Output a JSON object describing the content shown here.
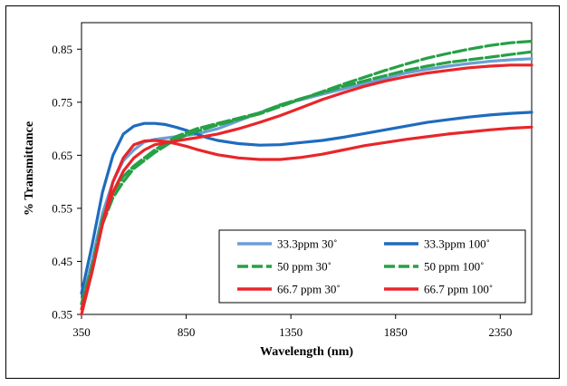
{
  "chart_data": {
    "type": "line",
    "title": "",
    "xlabel": "Wavelength (nm)",
    "ylabel": "% Transmittance",
    "xlim": [
      350,
      2500
    ],
    "ylim": [
      0.35,
      0.9
    ],
    "xticks": [
      350,
      850,
      1350,
      1850,
      2350
    ],
    "yticks": [
      0.35,
      0.45,
      0.55,
      0.65,
      0.75,
      0.85
    ],
    "xtick_labels": [
      "350",
      "850",
      "1350",
      "1850",
      "2350"
    ],
    "ytick_labels": [
      "0.35",
      "0.45",
      "0.55",
      "0.65",
      "0.75",
      "0.85"
    ],
    "grid": false,
    "legend_position": "lower-right",
    "series": [
      {
        "name": "33.3ppm 30˚",
        "color": "#6a9fd4",
        "style": "solid",
        "x": [
          350,
          400,
          450,
          500,
          550,
          600,
          650,
          700,
          800,
          900,
          1000,
          1100,
          1200,
          1300,
          1400,
          1500,
          1600,
          1700,
          1800,
          1900,
          2000,
          2100,
          2200,
          2300,
          2400,
          2500
        ],
        "y": [
          0.37,
          0.45,
          0.54,
          0.6,
          0.64,
          0.66,
          0.675,
          0.68,
          0.685,
          0.69,
          0.7,
          0.715,
          0.73,
          0.745,
          0.755,
          0.765,
          0.775,
          0.785,
          0.795,
          0.805,
          0.812,
          0.818,
          0.823,
          0.827,
          0.83,
          0.832
        ]
      },
      {
        "name": "33.3ppm 100˚",
        "color": "#1f6bbf",
        "style": "solid",
        "x": [
          350,
          400,
          450,
          500,
          550,
          600,
          650,
          700,
          750,
          800,
          850,
          900,
          950,
          1000,
          1100,
          1200,
          1300,
          1400,
          1500,
          1600,
          1700,
          1800,
          1900,
          2000,
          2100,
          2200,
          2300,
          2400,
          2500
        ],
        "y": [
          0.39,
          0.48,
          0.58,
          0.65,
          0.69,
          0.705,
          0.71,
          0.71,
          0.708,
          0.703,
          0.697,
          0.69,
          0.683,
          0.678,
          0.672,
          0.669,
          0.67,
          0.674,
          0.678,
          0.684,
          0.691,
          0.698,
          0.705,
          0.712,
          0.717,
          0.722,
          0.726,
          0.729,
          0.731
        ]
      },
      {
        "name": "50 ppm 30˚",
        "color": "#27a046",
        "style": "dash",
        "x": [
          350,
          400,
          450,
          500,
          550,
          600,
          650,
          700,
          800,
          900,
          1000,
          1100,
          1200,
          1300,
          1400,
          1500,
          1600,
          1700,
          1800,
          1900,
          2000,
          2100,
          2200,
          2300,
          2400,
          2500
        ],
        "y": [
          0.37,
          0.44,
          0.53,
          0.58,
          0.61,
          0.63,
          0.645,
          0.66,
          0.685,
          0.7,
          0.71,
          0.72,
          0.73,
          0.745,
          0.757,
          0.768,
          0.78,
          0.79,
          0.8,
          0.81,
          0.818,
          0.825,
          0.83,
          0.835,
          0.84,
          0.845
        ]
      },
      {
        "name": "50 ppm 100˚",
        "color": "#27a046",
        "style": "dash",
        "x": [
          350,
          400,
          450,
          500,
          550,
          600,
          650,
          700,
          800,
          900,
          1000,
          1100,
          1200,
          1300,
          1400,
          1500,
          1600,
          1700,
          1800,
          1900,
          2000,
          2100,
          2200,
          2300,
          2400,
          2500
        ],
        "y": [
          0.37,
          0.44,
          0.52,
          0.57,
          0.6,
          0.625,
          0.64,
          0.655,
          0.68,
          0.695,
          0.707,
          0.718,
          0.728,
          0.742,
          0.756,
          0.77,
          0.784,
          0.797,
          0.81,
          0.822,
          0.833,
          0.842,
          0.85,
          0.857,
          0.862,
          0.865
        ]
      },
      {
        "name": "66.7 ppm 30˚",
        "color": "#e8262a",
        "style": "solid",
        "x": [
          350,
          400,
          450,
          500,
          550,
          600,
          650,
          700,
          800,
          900,
          1000,
          1100,
          1200,
          1300,
          1400,
          1500,
          1600,
          1700,
          1800,
          1900,
          2000,
          2100,
          2200,
          2300,
          2400,
          2500
        ],
        "y": [
          0.36,
          0.43,
          0.52,
          0.58,
          0.62,
          0.645,
          0.66,
          0.67,
          0.677,
          0.683,
          0.69,
          0.7,
          0.712,
          0.725,
          0.74,
          0.755,
          0.768,
          0.78,
          0.79,
          0.798,
          0.805,
          0.81,
          0.815,
          0.818,
          0.82,
          0.82
        ]
      },
      {
        "name": "66.7 ppm 100˚",
        "color": "#e8262a",
        "style": "solid",
        "x": [
          350,
          400,
          450,
          500,
          550,
          600,
          650,
          700,
          750,
          800,
          850,
          900,
          1000,
          1100,
          1200,
          1300,
          1400,
          1500,
          1600,
          1700,
          1800,
          1900,
          2000,
          2100,
          2200,
          2300,
          2400,
          2500
        ],
        "y": [
          0.35,
          0.43,
          0.52,
          0.6,
          0.645,
          0.67,
          0.677,
          0.678,
          0.676,
          0.672,
          0.667,
          0.661,
          0.651,
          0.645,
          0.642,
          0.642,
          0.646,
          0.652,
          0.66,
          0.668,
          0.674,
          0.68,
          0.685,
          0.69,
          0.694,
          0.698,
          0.701,
          0.703
        ]
      }
    ]
  }
}
